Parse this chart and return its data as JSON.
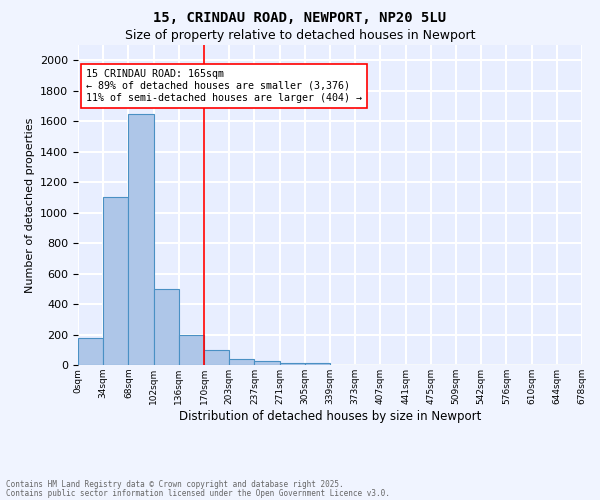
{
  "title1": "15, CRINDAU ROAD, NEWPORT, NP20 5LU",
  "title2": "Size of property relative to detached houses in Newport",
  "xlabel": "Distribution of detached houses by size in Newport",
  "ylabel": "Number of detached properties",
  "bar_color": "#aec6e8",
  "bar_edge_color": "#4a90c4",
  "background_color": "#e8eeff",
  "grid_color": "#ffffff",
  "bin_labels": [
    "0sqm",
    "34sqm",
    "68sqm",
    "102sqm",
    "136sqm",
    "170sqm",
    "203sqm",
    "237sqm",
    "271sqm",
    "305sqm",
    "339sqm",
    "373sqm",
    "407sqm",
    "441sqm",
    "475sqm",
    "509sqm",
    "542sqm",
    "576sqm",
    "610sqm",
    "644sqm",
    "678sqm"
  ],
  "bar_heights": [
    175,
    1100,
    1650,
    500,
    200,
    100,
    40,
    25,
    15,
    10,
    0,
    0,
    0,
    0,
    0,
    0,
    0,
    0,
    0,
    0
  ],
  "red_line_x": 5,
  "annotation_line1": "15 CRINDAU ROAD: 165sqm",
  "annotation_line2": "← 89% of detached houses are smaller (3,376)",
  "annotation_line3": "11% of semi-detached houses are larger (404) →",
  "ylim": [
    0,
    2100
  ],
  "yticks": [
    0,
    200,
    400,
    600,
    800,
    1000,
    1200,
    1400,
    1600,
    1800,
    2000
  ],
  "footer1": "Contains HM Land Registry data © Crown copyright and database right 2025.",
  "footer2": "Contains public sector information licensed under the Open Government Licence v3.0."
}
